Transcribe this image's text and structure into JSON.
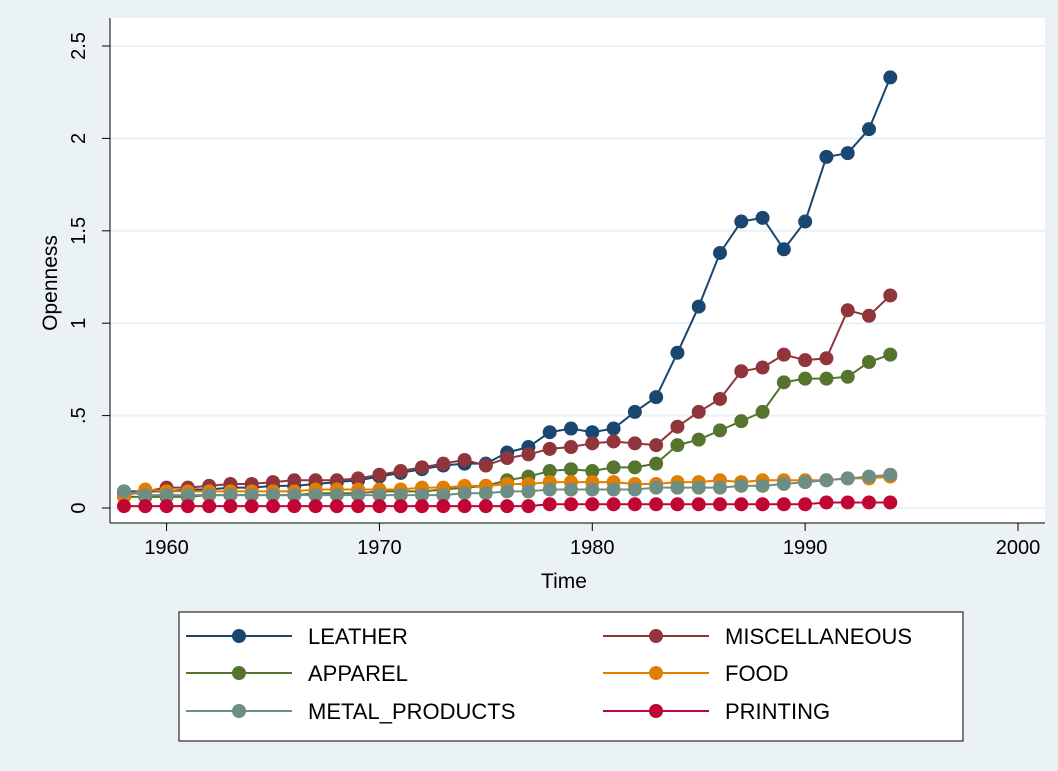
{
  "chart_data": {
    "type": "line",
    "xlabel": "Time",
    "ylabel": "Openness",
    "xlim": [
      1958,
      2000
    ],
    "ylim": [
      0,
      2.5
    ],
    "xticks": [
      1960,
      1970,
      1980,
      1990,
      2000
    ],
    "xtick_labels": [
      "1960",
      "1970",
      "1980",
      "1990",
      "2000"
    ],
    "yticks": [
      0,
      0.5,
      1,
      1.5,
      2,
      2.5
    ],
    "ytick_labels": [
      "0",
      ".5",
      "1",
      "1.5",
      "2",
      "2.5"
    ],
    "grid": true,
    "legend_position": "bottom",
    "x": [
      1958,
      1959,
      1960,
      1961,
      1962,
      1963,
      1964,
      1965,
      1966,
      1967,
      1968,
      1969,
      1970,
      1971,
      1972,
      1973,
      1974,
      1975,
      1976,
      1977,
      1978,
      1979,
      1980,
      1981,
      1982,
      1983,
      1984,
      1985,
      1986,
      1987,
      1988,
      1989,
      1990,
      1991,
      1992,
      1993,
      1994
    ],
    "series": [
      {
        "name": "LEATHER",
        "color": "#1a476f",
        "values": [
          0.09,
          0.09,
          0.09,
          0.1,
          0.1,
          0.11,
          0.11,
          0.12,
          0.12,
          0.13,
          0.14,
          0.15,
          0.17,
          0.19,
          0.21,
          0.23,
          0.24,
          0.24,
          0.3,
          0.33,
          0.41,
          0.43,
          0.41,
          0.43,
          0.52,
          0.6,
          0.84,
          1.09,
          1.38,
          1.55,
          1.57,
          1.4,
          1.55,
          1.9,
          1.92,
          2.05,
          2.33
        ]
      },
      {
        "name": "MISCELLANEOUS",
        "color": "#90353b",
        "values": [
          0.08,
          0.09,
          0.11,
          0.11,
          0.12,
          0.13,
          0.13,
          0.14,
          0.15,
          0.15,
          0.15,
          0.16,
          0.18,
          0.2,
          0.22,
          0.24,
          0.26,
          0.23,
          0.27,
          0.29,
          0.32,
          0.33,
          0.35,
          0.36,
          0.35,
          0.34,
          0.44,
          0.52,
          0.59,
          0.74,
          0.76,
          0.83,
          0.8,
          0.81,
          1.07,
          1.04,
          1.15
        ]
      },
      {
        "name": "APPAREL",
        "color": "#55752f",
        "values": [
          0.06,
          0.06,
          0.06,
          0.06,
          0.07,
          0.07,
          0.07,
          0.07,
          0.07,
          0.08,
          0.08,
          0.08,
          0.09,
          0.09,
          0.09,
          0.1,
          0.11,
          0.12,
          0.15,
          0.17,
          0.2,
          0.21,
          0.2,
          0.22,
          0.22,
          0.24,
          0.34,
          0.37,
          0.42,
          0.47,
          0.52,
          0.68,
          0.7,
          0.7,
          0.71,
          0.79,
          0.83
        ]
      },
      {
        "name": "FOOD",
        "color": "#e37e00",
        "values": [
          0.06,
          0.1,
          0.09,
          0.09,
          0.09,
          0.09,
          0.09,
          0.09,
          0.09,
          0.1,
          0.1,
          0.1,
          0.1,
          0.1,
          0.11,
          0.11,
          0.12,
          0.12,
          0.13,
          0.13,
          0.14,
          0.14,
          0.14,
          0.14,
          0.13,
          0.13,
          0.14,
          0.14,
          0.15,
          0.14,
          0.15,
          0.15,
          0.15,
          0.15,
          0.16,
          0.16,
          0.17
        ]
      },
      {
        "name": "METAL_PRODUCTS",
        "color": "#6e8e84",
        "values": [
          0.09,
          0.07,
          0.07,
          0.07,
          0.07,
          0.07,
          0.07,
          0.07,
          0.07,
          0.07,
          0.07,
          0.07,
          0.07,
          0.07,
          0.07,
          0.07,
          0.08,
          0.08,
          0.09,
          0.09,
          0.1,
          0.1,
          0.1,
          0.1,
          0.1,
          0.11,
          0.11,
          0.11,
          0.11,
          0.12,
          0.12,
          0.13,
          0.14,
          0.15,
          0.16,
          0.17,
          0.18
        ]
      },
      {
        "name": "PRINTING",
        "color": "#c10534",
        "values": [
          0.01,
          0.01,
          0.01,
          0.01,
          0.01,
          0.01,
          0.01,
          0.01,
          0.01,
          0.01,
          0.01,
          0.01,
          0.01,
          0.01,
          0.01,
          0.01,
          0.01,
          0.01,
          0.01,
          0.01,
          0.02,
          0.02,
          0.02,
          0.02,
          0.02,
          0.02,
          0.02,
          0.02,
          0.02,
          0.02,
          0.02,
          0.02,
          0.02,
          0.03,
          0.03,
          0.03,
          0.03
        ]
      }
    ]
  }
}
